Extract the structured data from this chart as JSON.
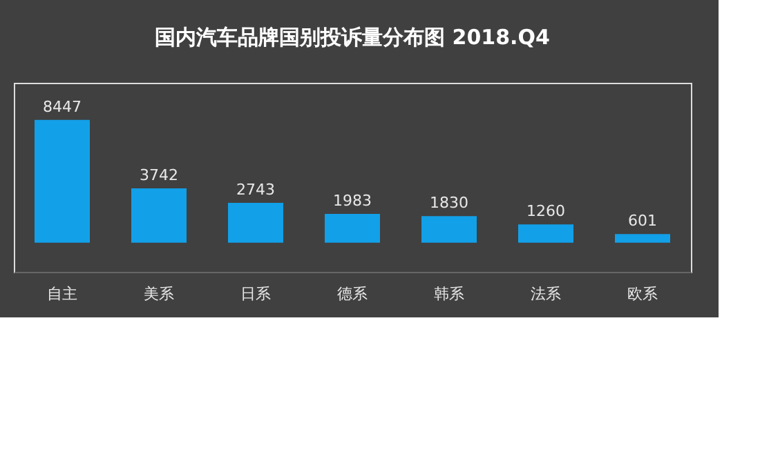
{
  "chart_data": {
    "type": "bar",
    "title": "国内汽车品牌国别投诉量分布图  2018.Q4",
    "categories": [
      "自主",
      "美系",
      "日系",
      "德系",
      "韩系",
      "法系",
      "欧系"
    ],
    "values": [
      8447,
      3742,
      2743,
      1983,
      1830,
      1260,
      601
    ],
    "color": "#12a0e8",
    "data_labels": true,
    "grid": false
  }
}
